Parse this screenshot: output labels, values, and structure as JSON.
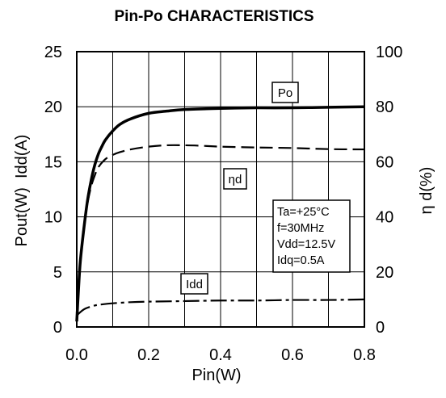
{
  "chart_data": {
    "type": "line",
    "title": "Pin-Po CHARACTERISTICS",
    "xlabel": "Pin(W)",
    "ylabel_left": "Pout(W)  Idd(A)",
    "ylabel_right": "η d(%)",
    "xlim": [
      0,
      0.8
    ],
    "ylim_left": [
      0,
      25
    ],
    "ylim_right": [
      0,
      100
    ],
    "x_ticks": [
      "0.0",
      "0.2",
      "0.4",
      "0.6",
      "0.8"
    ],
    "y_left_ticks": [
      "0",
      "5",
      "10",
      "15",
      "20",
      "25"
    ],
    "y_right_ticks": [
      "0",
      "20",
      "40",
      "60",
      "80",
      "100"
    ],
    "grid": true,
    "conditions": [
      "Ta=+25°C",
      "f=30MHz",
      "Vdd=12.5V",
      "Idq=0.5A"
    ],
    "series": [
      {
        "name": "Po",
        "axis": "left",
        "style": "solid",
        "x": [
          0,
          0.005,
          0.01,
          0.02,
          0.03,
          0.04,
          0.05,
          0.06,
          0.07,
          0.08,
          0.1,
          0.12,
          0.15,
          0.2,
          0.25,
          0.3,
          0.4,
          0.5,
          0.6,
          0.7,
          0.8
        ],
        "values": [
          0.5,
          3.5,
          6.0,
          9.0,
          11.5,
          13.3,
          14.7,
          15.7,
          16.4,
          17.0,
          17.8,
          18.4,
          18.9,
          19.4,
          19.6,
          19.75,
          19.85,
          19.9,
          19.9,
          19.95,
          20.0
        ]
      },
      {
        "name": "ηd",
        "axis": "right",
        "style": "dashed",
        "x": [
          0,
          0.005,
          0.01,
          0.02,
          0.03,
          0.04,
          0.05,
          0.06,
          0.08,
          0.1,
          0.12,
          0.15,
          0.2,
          0.25,
          0.3,
          0.35,
          0.4,
          0.5,
          0.6,
          0.7,
          0.8
        ],
        "values": [
          5,
          15,
          24,
          37,
          45,
          51,
          55,
          58,
          61,
          62.5,
          63.5,
          64.5,
          65.5,
          66,
          66,
          65.8,
          65.5,
          65.2,
          65,
          64.6,
          64.5
        ]
      },
      {
        "name": "Idd",
        "axis": "left",
        "style": "dash-dot",
        "x": [
          0,
          0.005,
          0.01,
          0.02,
          0.03,
          0.05,
          0.07,
          0.1,
          0.15,
          0.2,
          0.3,
          0.4,
          0.5,
          0.6,
          0.7,
          0.8
        ],
        "values": [
          1.0,
          1.2,
          1.35,
          1.6,
          1.75,
          1.95,
          2.05,
          2.15,
          2.25,
          2.3,
          2.35,
          2.4,
          2.4,
          2.45,
          2.45,
          2.5
        ]
      }
    ]
  }
}
